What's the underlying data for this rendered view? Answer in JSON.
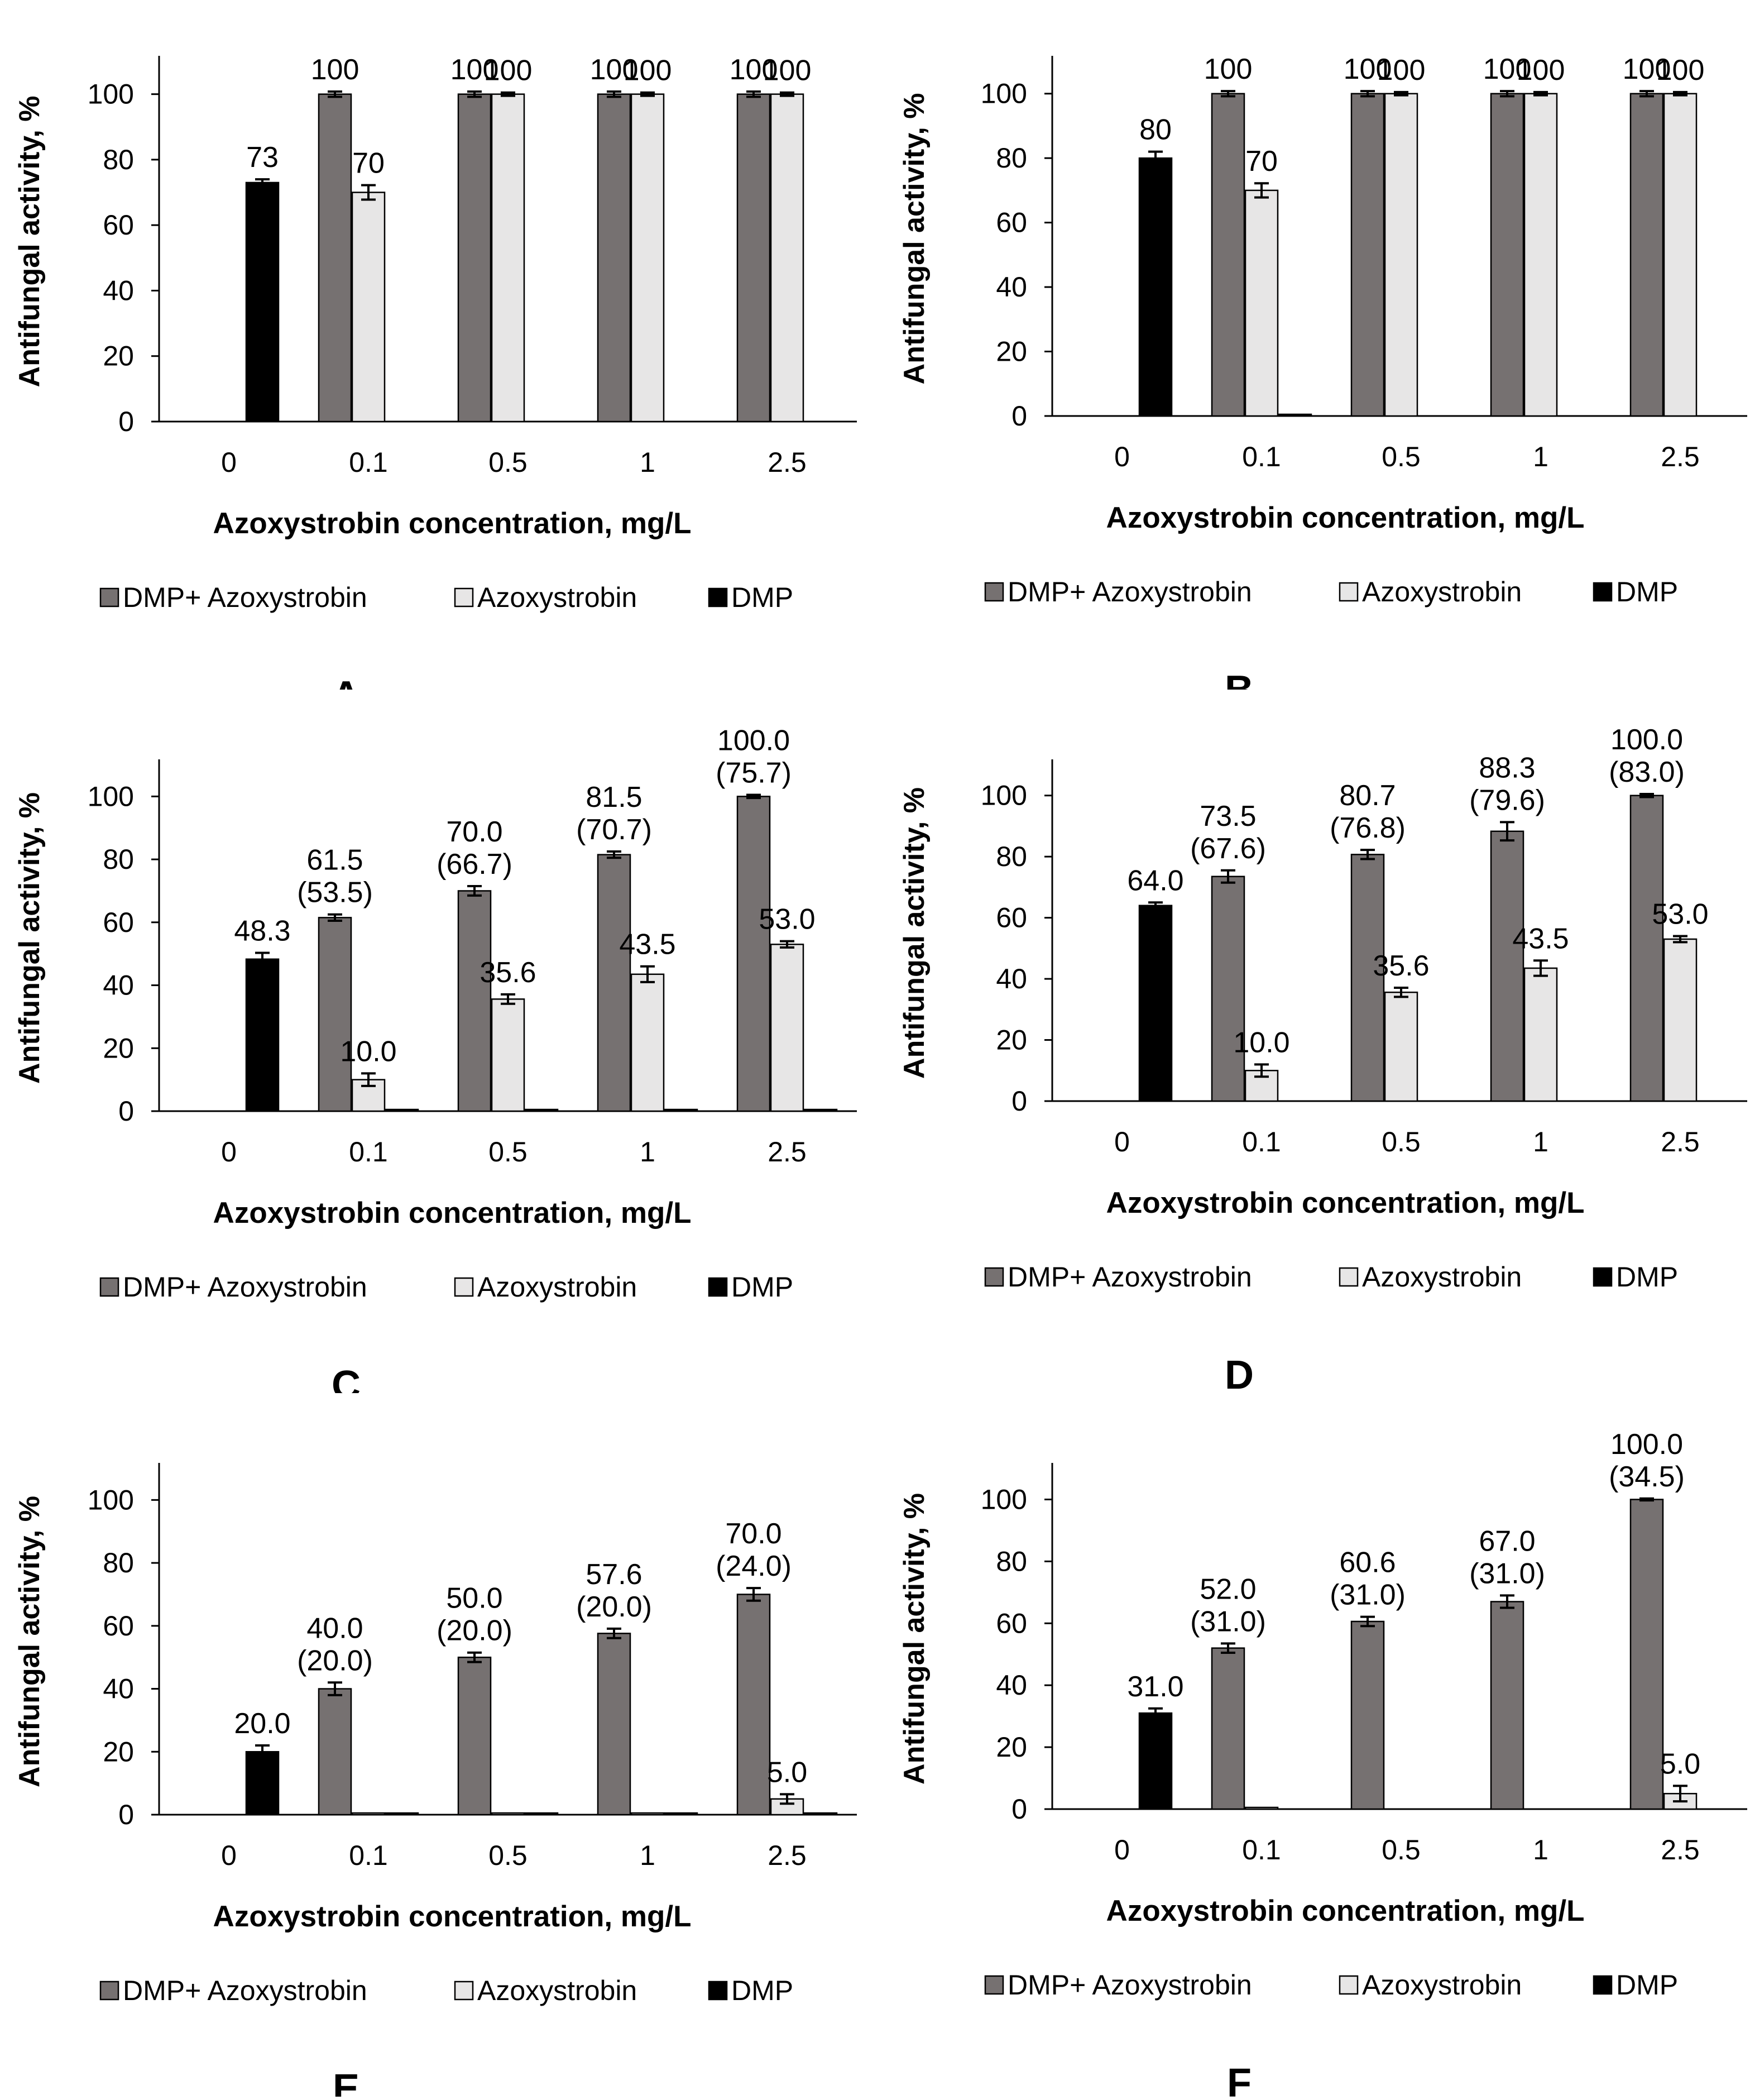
{
  "colors": {
    "combo": "#767171",
    "azoxy": "#e7e6e6",
    "dmp": "#000000",
    "bar_edge": "#000000",
    "axis": "#000000"
  },
  "chart_data": [
    {
      "panel_letter": "A",
      "type": "bar",
      "xlabel": "Azoxystrobin concentration, mg/L",
      "ylabel": "Antifungal activity, %",
      "ylim": [
        0,
        110
      ],
      "yticks": [
        "0",
        "20",
        "40",
        "60",
        "80",
        "100"
      ],
      "categories": [
        "0",
        "0.1",
        "0.5",
        "1",
        "2.5"
      ],
      "grid": false,
      "legend_position": "bottom",
      "series": [
        {
          "name": "DMP+ Azoxystrobin",
          "values": [
            null,
            100,
            100,
            100,
            100
          ],
          "errors": [
            0,
            0.8,
            0.8,
            0.8,
            0.8
          ]
        },
        {
          "name": "Azoxystrobin",
          "values": [
            null,
            70,
            100,
            100,
            100
          ],
          "errors": [
            0,
            2.2,
            0.5,
            0.5,
            0.5
          ]
        },
        {
          "name": "DMP",
          "values": [
            73,
            null,
            null,
            null,
            null
          ],
          "errors": [
            1.0,
            0,
            0,
            0,
            0
          ]
        }
      ],
      "data_labels": [
        {
          "category": "0",
          "series": 2,
          "lines": [
            "73"
          ]
        },
        {
          "category": "0.1",
          "series": 0,
          "lines": [
            "100"
          ]
        },
        {
          "category": "0.1",
          "series": 1,
          "lines": [
            "70"
          ]
        },
        {
          "category": "0.5",
          "series": 0,
          "lines": [
            "100"
          ]
        },
        {
          "category": "0.5",
          "series": 1,
          "lines": [
            "100"
          ]
        },
        {
          "category": "1",
          "series": 0,
          "lines": [
            "100"
          ]
        },
        {
          "category": "1",
          "series": 1,
          "lines": [
            "100"
          ]
        },
        {
          "category": "2.5",
          "series": 0,
          "lines": [
            "100"
          ]
        },
        {
          "category": "2.5",
          "series": 1,
          "lines": [
            "100"
          ]
        }
      ]
    },
    {
      "panel_letter": "B",
      "type": "bar",
      "xlabel": "Azoxystrobin concentration, mg/L",
      "ylabel": "Antifungal activity, %",
      "ylim": [
        0,
        110
      ],
      "yticks": [
        "0",
        "20",
        "40",
        "60",
        "80",
        "100"
      ],
      "categories": [
        "0",
        "0.1",
        "0.5",
        "1",
        "2.5"
      ],
      "grid": false,
      "legend_position": "bottom",
      "series": [
        {
          "name": "DMP+ Azoxystrobin",
          "values": [
            null,
            100,
            100,
            100,
            100
          ],
          "errors": [
            0,
            0.8,
            0.8,
            0.8,
            0.8
          ]
        },
        {
          "name": "Azoxystrobin",
          "values": [
            null,
            70,
            100,
            100,
            100
          ],
          "errors": [
            0,
            2.2,
            0.5,
            0.5,
            0.5
          ]
        },
        {
          "name": "DMP",
          "values": [
            80,
            0,
            null,
            null,
            null
          ],
          "errors": [
            2.0,
            0,
            0,
            0,
            0
          ]
        }
      ],
      "data_labels": [
        {
          "category": "0",
          "series": 2,
          "lines": [
            "80"
          ]
        },
        {
          "category": "0.1",
          "series": 0,
          "lines": [
            "100"
          ]
        },
        {
          "category": "0.1",
          "series": 1,
          "lines": [
            "70"
          ]
        },
        {
          "category": "0.5",
          "series": 0,
          "lines": [
            "100"
          ]
        },
        {
          "category": "0.5",
          "series": 1,
          "lines": [
            "100"
          ]
        },
        {
          "category": "1",
          "series": 0,
          "lines": [
            "100"
          ]
        },
        {
          "category": "1",
          "series": 1,
          "lines": [
            "100"
          ]
        },
        {
          "category": "2.5",
          "series": 0,
          "lines": [
            "100"
          ]
        },
        {
          "category": "2.5",
          "series": 1,
          "lines": [
            "100"
          ]
        }
      ]
    },
    {
      "panel_letter": "C",
      "type": "bar",
      "xlabel": "Azoxystrobin concentration, mg/L",
      "ylabel": "Antifungal activity, %",
      "ylim": [
        0,
        110
      ],
      "yticks": [
        "0",
        "20",
        "40",
        "60",
        "80",
        "100"
      ],
      "categories": [
        "0",
        "0.1",
        "0.5",
        "1",
        "2.5"
      ],
      "grid": false,
      "legend_position": "bottom",
      "series": [
        {
          "name": "DMP+ Azoxystrobin",
          "values": [
            null,
            61.5,
            70.0,
            81.5,
            100.0
          ],
          "errors": [
            0,
            1.0,
            1.5,
            1.0,
            0.5
          ]
        },
        {
          "name": "Azoxystrobin",
          "values": [
            null,
            10.0,
            35.6,
            43.5,
            53.0
          ],
          "errors": [
            0,
            2.0,
            1.5,
            2.5,
            1.0
          ]
        },
        {
          "name": "DMP",
          "values": [
            48.3,
            0,
            0,
            0,
            0
          ],
          "errors": [
            2.0,
            0,
            0,
            0,
            0
          ]
        }
      ],
      "data_labels": [
        {
          "category": "0",
          "series": 2,
          "lines": [
            "48.3"
          ]
        },
        {
          "category": "0.1",
          "series": 0,
          "lines": [
            "61.5",
            "(53.5)"
          ]
        },
        {
          "category": "0.1",
          "series": 1,
          "lines": [
            "10.0"
          ]
        },
        {
          "category": "0.5",
          "series": 0,
          "lines": [
            "70.0",
            "(66.7)"
          ]
        },
        {
          "category": "0.5",
          "series": 1,
          "lines": [
            "35.6"
          ]
        },
        {
          "category": "1",
          "series": 0,
          "lines": [
            "81.5",
            "(70.7)"
          ]
        },
        {
          "category": "1",
          "series": 1,
          "lines": [
            "43.5"
          ]
        },
        {
          "category": "2.5",
          "series": 0,
          "lines": [
            "100.0",
            "(75.7)"
          ]
        },
        {
          "category": "2.5",
          "series": 1,
          "lines": [
            "53.0"
          ]
        }
      ]
    },
    {
      "panel_letter": "D",
      "type": "bar",
      "xlabel": "Azoxystrobin concentration, mg/L",
      "ylabel": "Antifungal activity, %",
      "ylim": [
        0,
        110
      ],
      "yticks": [
        "0",
        "20",
        "40",
        "60",
        "80",
        "100"
      ],
      "categories": [
        "0",
        "0.1",
        "0.5",
        "1",
        "2.5"
      ],
      "grid": false,
      "legend_position": "bottom",
      "series": [
        {
          "name": "DMP+ Azoxystrobin",
          "values": [
            null,
            73.5,
            80.7,
            88.3,
            100.0
          ],
          "errors": [
            0,
            2.0,
            1.5,
            3.0,
            0.5
          ]
        },
        {
          "name": "Azoxystrobin",
          "values": [
            null,
            10.0,
            35.6,
            43.5,
            53.0
          ],
          "errors": [
            0,
            2.0,
            1.5,
            2.5,
            1.0
          ]
        },
        {
          "name": "DMP",
          "values": [
            64.0,
            null,
            null,
            null,
            null
          ],
          "errors": [
            1.0,
            0,
            0,
            0,
            0
          ]
        }
      ],
      "data_labels": [
        {
          "category": "0",
          "series": 2,
          "lines": [
            "64.0"
          ]
        },
        {
          "category": "0.1",
          "series": 0,
          "lines": [
            "73.5",
            "(67.6)"
          ]
        },
        {
          "category": "0.1",
          "series": 1,
          "lines": [
            "10.0"
          ]
        },
        {
          "category": "0.5",
          "series": 0,
          "lines": [
            "80.7",
            "(76.8)"
          ]
        },
        {
          "category": "0.5",
          "series": 1,
          "lines": [
            "35.6"
          ]
        },
        {
          "category": "1",
          "series": 0,
          "lines": [
            "88.3",
            "(79.6)"
          ]
        },
        {
          "category": "1",
          "series": 1,
          "lines": [
            "43.5"
          ]
        },
        {
          "category": "2.5",
          "series": 0,
          "lines": [
            "100.0",
            "(83.0)"
          ]
        },
        {
          "category": "2.5",
          "series": 1,
          "lines": [
            "53.0"
          ]
        }
      ]
    },
    {
      "panel_letter": "E",
      "type": "bar",
      "xlabel": "Azoxystrobin concentration, mg/L",
      "ylabel": "Antifungal activity, %",
      "ylim": [
        0,
        110
      ],
      "yticks": [
        "0",
        "20",
        "40",
        "60",
        "80",
        "100"
      ],
      "categories": [
        "0",
        "0.1",
        "0.5",
        "1",
        "2.5"
      ],
      "grid": false,
      "legend_position": "bottom",
      "series": [
        {
          "name": "DMP+ Azoxystrobin",
          "values": [
            null,
            40.0,
            50.0,
            57.6,
            70.0
          ],
          "errors": [
            0,
            2.0,
            1.5,
            1.5,
            2.0
          ]
        },
        {
          "name": "Azoxystrobin",
          "values": [
            null,
            0,
            0,
            0,
            5.0
          ],
          "errors": [
            0,
            0,
            0,
            0,
            1.5
          ]
        },
        {
          "name": "DMP",
          "values": [
            20.0,
            0,
            0,
            0,
            0
          ],
          "errors": [
            2.0,
            0,
            0,
            0,
            0
          ]
        }
      ],
      "data_labels": [
        {
          "category": "0",
          "series": 2,
          "lines": [
            "20.0"
          ]
        },
        {
          "category": "0.1",
          "series": 0,
          "lines": [
            "40.0",
            "(20.0)"
          ]
        },
        {
          "category": "0.5",
          "series": 0,
          "lines": [
            "50.0",
            "(20.0)"
          ]
        },
        {
          "category": "1",
          "series": 0,
          "lines": [
            "57.6",
            "(20.0)"
          ]
        },
        {
          "category": "2.5",
          "series": 0,
          "lines": [
            "70.0",
            "(24.0)"
          ]
        },
        {
          "category": "2.5",
          "series": 1,
          "lines": [
            "5.0"
          ]
        }
      ]
    },
    {
      "panel_letter": "F",
      "type": "bar",
      "xlabel": "Azoxystrobin concentration, mg/L",
      "ylabel": "Antifungal activity, %",
      "ylim": [
        0,
        110
      ],
      "yticks": [
        "0",
        "20",
        "40",
        "60",
        "80",
        "100"
      ],
      "categories": [
        "0",
        "0.1",
        "0.5",
        "1",
        "2.5"
      ],
      "grid": false,
      "legend_position": "bottom",
      "series": [
        {
          "name": "DMP+ Azoxystrobin",
          "values": [
            null,
            52.0,
            60.6,
            67.0,
            100.0
          ],
          "errors": [
            0,
            1.5,
            1.5,
            2.0,
            0.3
          ]
        },
        {
          "name": "Azoxystrobin",
          "values": [
            null,
            0,
            null,
            null,
            5.0
          ],
          "errors": [
            0,
            0,
            0,
            0,
            2.5
          ]
        },
        {
          "name": "DMP",
          "values": [
            31.0,
            null,
            null,
            null,
            null
          ],
          "errors": [
            1.5,
            0,
            0,
            0,
            0
          ]
        }
      ],
      "data_labels": [
        {
          "category": "0",
          "series": 2,
          "lines": [
            "31.0"
          ]
        },
        {
          "category": "0.1",
          "series": 0,
          "lines": [
            "52.0",
            "(31.0)"
          ]
        },
        {
          "category": "0.5",
          "series": 0,
          "lines": [
            "60.6",
            "(31.0)"
          ]
        },
        {
          "category": "1",
          "series": 0,
          "lines": [
            "67.0",
            "(31.0)"
          ]
        },
        {
          "category": "2.5",
          "series": 0,
          "lines": [
            "100.0",
            "(34.5)"
          ]
        },
        {
          "category": "2.5",
          "series": 1,
          "lines": [
            "5.0"
          ]
        }
      ]
    }
  ]
}
